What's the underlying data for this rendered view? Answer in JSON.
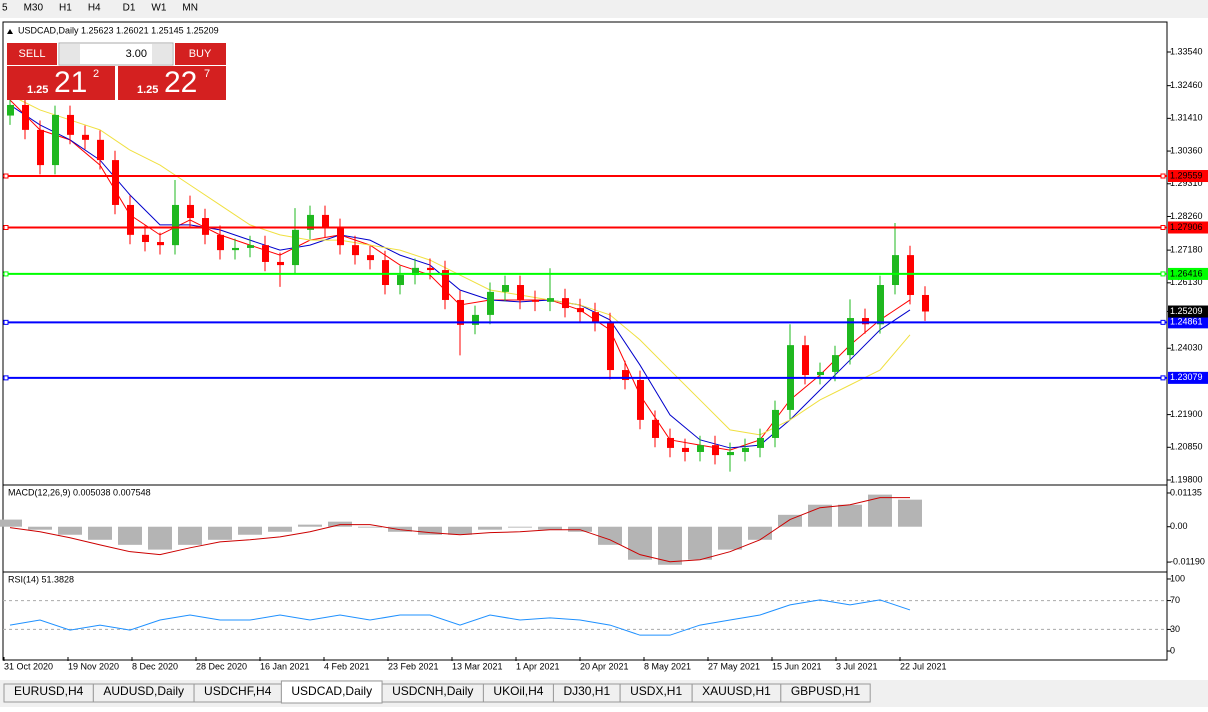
{
  "toolbar": {
    "timeframes": [
      "5",
      "M30",
      "H1",
      "H4",
      "D1",
      "W1",
      "MN"
    ]
  },
  "trade_panel": {
    "sell": "SELL",
    "buy": "BUY",
    "lots": "3.00",
    "sell_price": {
      "prefix": "1.25",
      "big": "21",
      "small": "2"
    },
    "buy_price": {
      "prefix": "1.25",
      "big": "22",
      "small": "7"
    }
  },
  "chart_data": [
    {
      "type": "candlestick",
      "title": "USDCAD,Daily  1.25623 1.26021 1.25145 1.25209",
      "ylim": [
        1.19672,
        1.34439
      ],
      "yticks": [
        {
          "value": 1.3354,
          "label": "1.33540"
        },
        {
          "value": 1.3246,
          "label": "1.32460"
        },
        {
          "value": 1.3141,
          "label": "1.31410"
        },
        {
          "value": 1.3036,
          "label": "1.30360"
        },
        {
          "value": 1.2931,
          "label": "1.29310"
        },
        {
          "value": 1.2826,
          "label": "1.28260"
        },
        {
          "value": 1.2718,
          "label": "1.27180"
        },
        {
          "value": 1.2613,
          "label": "1.26130"
        },
        {
          "value": 1.2403,
          "label": "1.24030"
        },
        {
          "value": 1.219,
          "label": "1.21900"
        },
        {
          "value": 1.2085,
          "label": "1.20850"
        },
        {
          "value": 1.198,
          "label": "1.19800"
        }
      ],
      "x_labels": [
        "31 Oct 2020",
        "19 Nov 2020",
        "8 Dec 2020",
        "28 Dec 2020",
        "16 Jan 2021",
        "4 Feb 2021",
        "23 Feb 2021",
        "13 Mar 2021",
        "1 Apr 2021",
        "20 Apr 2021",
        "8 May 2021",
        "27 May 2021",
        "15 Jun 2021",
        "3 Jul 2021",
        "22 Jul 2021"
      ],
      "up_color": "#1fb81f",
      "down_color": "#ff0000",
      "candles": [
        [
          1.315,
          1.3214,
          1.312,
          1.3184
        ],
        [
          1.3184,
          1.3214,
          1.3074,
          1.3104
        ],
        [
          1.3104,
          1.3134,
          1.2961,
          1.2991
        ],
        [
          1.2991,
          1.3182,
          1.2961,
          1.3152
        ],
        [
          1.3152,
          1.3182,
          1.3058,
          1.3088
        ],
        [
          1.3088,
          1.3118,
          1.3042,
          1.3072
        ],
        [
          1.3072,
          1.3102,
          1.2977,
          1.3007
        ],
        [
          1.3007,
          1.3037,
          1.2833,
          1.2863
        ],
        [
          1.2863,
          1.2893,
          1.2737,
          1.2767
        ],
        [
          1.2767,
          1.2797,
          1.2714,
          1.2744
        ],
        [
          1.2744,
          1.2774,
          1.2704,
          1.2734
        ],
        [
          1.2734,
          1.2943,
          1.2704,
          1.2863
        ],
        [
          1.2863,
          1.2893,
          1.2791,
          1.2821
        ],
        [
          1.2821,
          1.2851,
          1.2737,
          1.2767
        ],
        [
          1.2767,
          1.2797,
          1.2688,
          1.2718
        ],
        [
          1.2718,
          1.2755,
          1.2688,
          1.2725
        ],
        [
          1.2725,
          1.2764,
          1.2695,
          1.2734
        ],
        [
          1.2734,
          1.2764,
          1.265,
          1.268
        ],
        [
          1.268,
          1.271,
          1.26,
          1.267
        ],
        [
          1.267,
          1.2853,
          1.264,
          1.2783
        ],
        [
          1.2783,
          1.2861,
          1.2753,
          1.2831
        ],
        [
          1.2831,
          1.2861,
          1.2759,
          1.2789
        ],
        [
          1.2789,
          1.2819,
          1.2704,
          1.2734
        ],
        [
          1.2734,
          1.2764,
          1.2672,
          1.2702
        ],
        [
          1.2702,
          1.2732,
          1.2656,
          1.2686
        ],
        [
          1.2686,
          1.2716,
          1.2576,
          1.2606
        ],
        [
          1.2606,
          1.2668,
          1.2576,
          1.2638
        ],
        [
          1.2638,
          1.2691,
          1.2608,
          1.2661
        ],
        [
          1.2661,
          1.2691,
          1.2624,
          1.2654
        ],
        [
          1.2654,
          1.2684,
          1.2528,
          1.2558
        ],
        [
          1.2558,
          1.2588,
          1.238,
          1.2478
        ],
        [
          1.2478,
          1.254,
          1.2448,
          1.251
        ],
        [
          1.251,
          1.2614,
          1.248,
          1.2584
        ],
        [
          1.2584,
          1.2636,
          1.2554,
          1.2606
        ],
        [
          1.2606,
          1.2636,
          1.2528,
          1.2558
        ],
        [
          1.2558,
          1.2588,
          1.2522,
          1.2552
        ],
        [
          1.2552,
          1.266,
          1.2522,
          1.2564
        ],
        [
          1.2564,
          1.2594,
          1.2502,
          1.2532
        ],
        [
          1.2532,
          1.2562,
          1.2489,
          1.2519
        ],
        [
          1.2519,
          1.2549,
          1.2457,
          1.2487
        ],
        [
          1.2487,
          1.2517,
          1.2303,
          1.2333
        ],
        [
          1.2333,
          1.2363,
          1.2271,
          1.2301
        ],
        [
          1.2301,
          1.2331,
          1.2143,
          1.2173
        ],
        [
          1.2173,
          1.2203,
          1.2085,
          1.2115
        ],
        [
          1.2115,
          1.2145,
          1.2053,
          1.2083
        ],
        [
          1.2083,
          1.2113,
          1.204,
          1.207
        ],
        [
          1.207,
          1.2122,
          1.204,
          1.2092
        ],
        [
          1.2092,
          1.2122,
          1.203,
          1.206
        ],
        [
          1.206,
          1.21,
          1.2007,
          1.207
        ],
        [
          1.207,
          1.2113,
          1.204,
          1.2083
        ],
        [
          1.2083,
          1.2145,
          1.2053,
          1.2115
        ],
        [
          1.2115,
          1.2235,
          1.2085,
          1.2205
        ],
        [
          1.2205,
          1.248,
          1.2175,
          1.2413
        ],
        [
          1.2413,
          1.2443,
          1.2287,
          1.2317
        ],
        [
          1.2317,
          1.2357,
          1.2287,
          1.2327
        ],
        [
          1.2327,
          1.2411,
          1.2297,
          1.2381
        ],
        [
          1.2381,
          1.256,
          1.2351,
          1.25
        ],
        [
          1.25,
          1.253,
          1.245,
          1.248
        ],
        [
          1.248,
          1.2636,
          1.245,
          1.2606
        ],
        [
          1.2606,
          1.2805,
          1.2576,
          1.2702
        ],
        [
          1.2702,
          1.2732,
          1.2544,
          1.2574
        ],
        [
          1.2574,
          1.2602,
          1.2491,
          1.2521
        ]
      ],
      "series": [
        {
          "color": "#ff0000",
          "values": [
            1.32,
            1.3104,
            1.3072,
            1.2991,
            1.2831,
            1.2767,
            1.2815,
            1.2767,
            1.2734,
            1.2702,
            1.275,
            1.2767,
            1.2734,
            1.267,
            1.2638,
            1.2542,
            1.2558,
            1.2558,
            1.2558,
            1.2526,
            1.2462,
            1.2253,
            1.2109,
            1.2092,
            1.2076,
            1.2109,
            1.2237,
            1.2317,
            1.2413,
            1.2494,
            1.2558
          ]
        },
        {
          "color": "#0000cc",
          "values": [
            1.3184,
            1.312,
            1.3072,
            1.3007,
            1.2895,
            1.2799,
            1.2799,
            1.2783,
            1.275,
            1.2718,
            1.2734,
            1.2767,
            1.275,
            1.2702,
            1.267,
            1.259,
            1.2558,
            1.2552,
            1.2558,
            1.2542,
            1.2494,
            1.2349,
            1.2189,
            1.2109,
            1.2083,
            1.2092,
            1.2173,
            1.2269,
            1.2365,
            1.2462,
            1.2526
          ]
        },
        {
          "color": "#f0e040",
          "values": [
            1.3216,
            1.3168,
            1.3136,
            1.3104,
            1.3039,
            1.2991,
            1.2927,
            1.2863,
            1.2799,
            1.2767,
            1.275,
            1.275,
            1.2734,
            1.2718,
            1.2686,
            1.2638,
            1.259,
            1.2574,
            1.2558,
            1.2542,
            1.251,
            1.243,
            1.2333,
            1.2237,
            1.2141,
            1.2125,
            1.2173,
            1.2237,
            1.2285,
            1.2333,
            1.2446
          ]
        }
      ],
      "hlines": [
        {
          "value": 1.29559,
          "label": "1.29559",
          "color": "#ff0000"
        },
        {
          "value": 1.27906,
          "label": "1.27906",
          "color": "#ff0000"
        },
        {
          "value": 1.26416,
          "label": "1.26416",
          "color": "#00ff00"
        },
        {
          "value": 1.24861,
          "label": "1.24861",
          "color": "#0000ff"
        },
        {
          "value": 1.23079,
          "label": "1.23079",
          "color": "#0000ff"
        }
      ],
      "price": {
        "value": 1.25209,
        "label": "1.25209"
      }
    },
    {
      "type": "macd",
      "title": "MACD(12,26,9) 0.005038 0.007548",
      "ylim": [
        -0.0149,
        0.0137
      ],
      "yticks": [
        {
          "value": 0.01135,
          "label": "0.01135"
        },
        {
          "value": 0,
          "label": "0.00"
        },
        {
          "value": -0.0119,
          "label": "-0.01190"
        }
      ],
      "histogram": {
        "color": "#b4b4b4",
        "values": [
          0.0024,
          -0.001,
          -0.0027,
          -0.0044,
          -0.0061,
          -0.0077,
          -0.0061,
          -0.0044,
          -0.0027,
          -0.0017,
          0.0007,
          0.0017,
          -0.0003,
          -0.0017,
          -0.0027,
          -0.0027,
          -0.001,
          -0.0003,
          -0.001,
          -0.0017,
          -0.0061,
          -0.0111,
          -0.0128,
          -0.0111,
          -0.0077,
          -0.0044,
          0.004,
          0.0074,
          0.0074,
          0.0108,
          0.0091
        ]
      },
      "signal": {
        "color": "#cc0000",
        "values": [
          -0.0003,
          -0.0017,
          -0.0037,
          -0.0061,
          -0.0084,
          -0.0094,
          -0.0071,
          -0.0051,
          -0.0044,
          -0.0034,
          -0.0017,
          0.0007,
          0.0007,
          -0.001,
          -0.002,
          -0.0027,
          -0.002,
          -0.0017,
          -0.001,
          -0.001,
          -0.0044,
          -0.0094,
          -0.0118,
          -0.0111,
          -0.0084,
          -0.0044,
          0.0024,
          0.0064,
          0.0074,
          0.0098,
          0.0098
        ]
      }
    },
    {
      "type": "rsi",
      "title": "RSI(14) 51.3828",
      "ylim": [
        -8.3,
        108.3
      ],
      "yticks": [
        100,
        70,
        30,
        0
      ],
      "levels": [
        70,
        30
      ],
      "color": "#1e90ff",
      "values": [
        36,
        43,
        29,
        36,
        29,
        43,
        50,
        43,
        43,
        50,
        43,
        50,
        43,
        50,
        50,
        36,
        50,
        43,
        46,
        43,
        36,
        22,
        22,
        36,
        43,
        50,
        64,
        71,
        64,
        71,
        57
      ]
    }
  ],
  "tabs": [
    "EURUSD,H4",
    "AUDUSD,Daily",
    "USDCHF,H4",
    "USDCAD,Daily",
    "USDCNH,Daily",
    "UKOil,H4",
    "DJ30,H1",
    "USDX,H1",
    "XAUUSD,H1",
    "GBPUSD,H1"
  ],
  "active_tab": 3
}
